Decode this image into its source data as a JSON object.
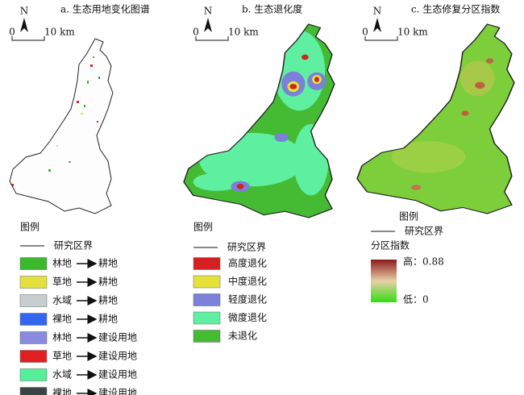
{
  "panels": [
    {
      "title": "a. 生态用地变化图谱",
      "north": "N",
      "scale": {
        "start": "0",
        "end": "10 km"
      },
      "legend": {
        "title": "图例",
        "boundary": "研究区界",
        "items": [
          {
            "from": "林地",
            "to": "耕地",
            "color": "#3cb82e"
          },
          {
            "from": "草地",
            "to": "耕地",
            "color": "#e2e03e"
          },
          {
            "from": "水域",
            "to": "耕地",
            "color": "#c8cdcd"
          },
          {
            "from": "裸地",
            "to": "耕地",
            "color": "#3366ee"
          },
          {
            "from": "林地",
            "to": "建设用地",
            "color": "#8a8ae0"
          },
          {
            "from": "草地",
            "to": "建设用地",
            "color": "#e02020"
          },
          {
            "from": "水域",
            "to": "建设用地",
            "color": "#55ee99"
          },
          {
            "from": "裸地",
            "to": "建设用地",
            "color": "#3a4444"
          }
        ]
      }
    },
    {
      "title": "b. 生态退化度",
      "north": "N",
      "scale": {
        "start": "0",
        "end": "10 km"
      },
      "legend": {
        "title": "图例",
        "boundary": "研究区界",
        "items": [
          {
            "label": "高度退化",
            "color": "#d42020"
          },
          {
            "label": "中度退化",
            "color": "#e5e23a"
          },
          {
            "label": "轻度退化",
            "color": "#7b80d8"
          },
          {
            "label": "微度退化",
            "color": "#5ef0a0"
          },
          {
            "label": "未退化",
            "color": "#44bb33"
          }
        ]
      }
    },
    {
      "title": "c. 生态修复分区指数",
      "north": "N",
      "scale": {
        "start": "0",
        "end": "10 km"
      },
      "legend": {
        "title": "图例",
        "boundary": "研究区界",
        "index_title": "分区指数",
        "high": "高：0.88",
        "low": "低：0",
        "colors": [
          "#8b1a1a",
          "#e8d0a8",
          "#33dd11"
        ]
      }
    }
  ]
}
